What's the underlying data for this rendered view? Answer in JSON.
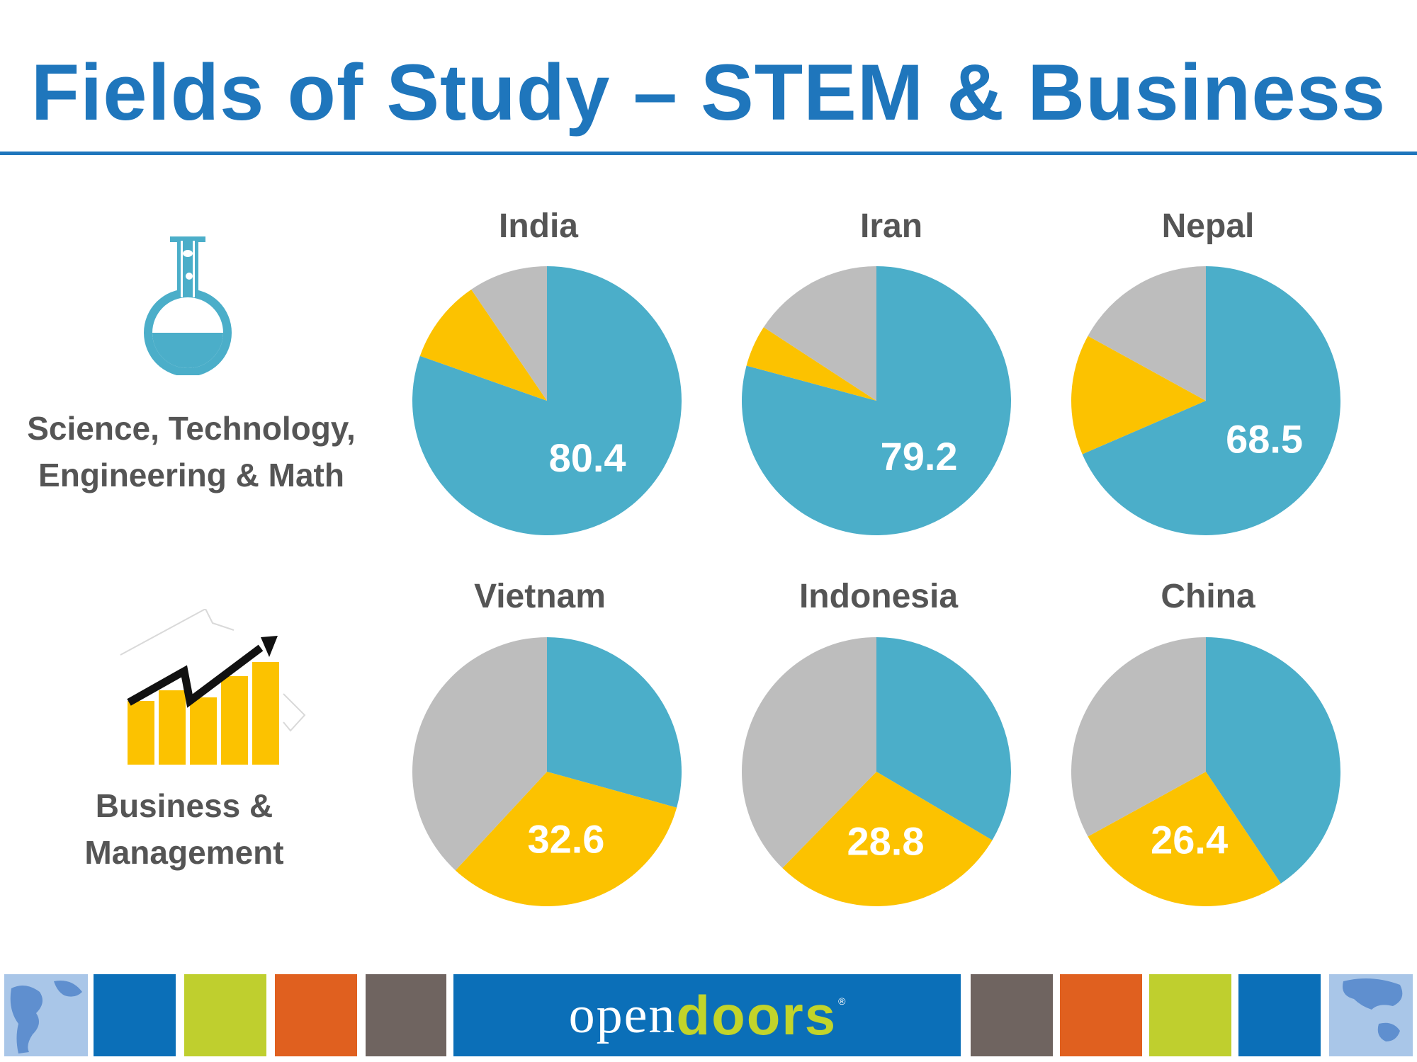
{
  "title": "Fields of Study – STEM & Business",
  "categories": {
    "stem": {
      "line1": "Science, Technology,",
      "line2": "Engineering & Math",
      "icon": "flask-icon"
    },
    "business": {
      "line1": "Business &",
      "line2": "Management",
      "icon": "growth-chart-icon"
    }
  },
  "colors": {
    "stem": "#4baec9",
    "business": "#fcc200",
    "other": "#bdbdbd",
    "brand_blue": "#1f76bc"
  },
  "chart_data": [
    {
      "type": "pie",
      "title": "India",
      "highlight": "stem",
      "label": "80.4",
      "slices": [
        {
          "category": "stem",
          "value": 80.4
        },
        {
          "category": "business",
          "value": 10.1
        },
        {
          "category": "other",
          "value": 9.5
        }
      ]
    },
    {
      "type": "pie",
      "title": "Iran",
      "highlight": "stem",
      "label": "79.2",
      "slices": [
        {
          "category": "stem",
          "value": 79.2
        },
        {
          "category": "business",
          "value": 5.0
        },
        {
          "category": "other",
          "value": 15.8
        }
      ]
    },
    {
      "type": "pie",
      "title": "Nepal",
      "highlight": "stem",
      "label": "68.5",
      "slices": [
        {
          "category": "stem",
          "value": 68.5
        },
        {
          "category": "business",
          "value": 14.5
        },
        {
          "category": "other",
          "value": 17.0
        }
      ]
    },
    {
      "type": "pie",
      "title": "Vietnam",
      "highlight": "business",
      "label": "32.6",
      "slices": [
        {
          "category": "stem",
          "value": 29.3
        },
        {
          "category": "business",
          "value": 32.6
        },
        {
          "category": "other",
          "value": 38.1
        }
      ]
    },
    {
      "type": "pie",
      "title": "Indonesia",
      "highlight": "business",
      "label": "28.8",
      "slices": [
        {
          "category": "stem",
          "value": 33.5
        },
        {
          "category": "business",
          "value": 28.8
        },
        {
          "category": "other",
          "value": 37.7
        }
      ]
    },
    {
      "type": "pie",
      "title": "China",
      "highlight": "business",
      "label": "26.4",
      "slices": [
        {
          "category": "stem",
          "value": 40.6
        },
        {
          "category": "business",
          "value": 26.4
        },
        {
          "category": "other",
          "value": 33.0
        }
      ]
    }
  ],
  "footer": {
    "logo_part1": "open",
    "logo_part2": "doors",
    "logo_reg": "®",
    "tile_colors": [
      "#0b6fb8",
      "#bfcf2e",
      "#e0601f",
      "#6f6460",
      "#6f6460",
      "#e0601f",
      "#bfcf2e",
      "#0b6fb8"
    ]
  }
}
